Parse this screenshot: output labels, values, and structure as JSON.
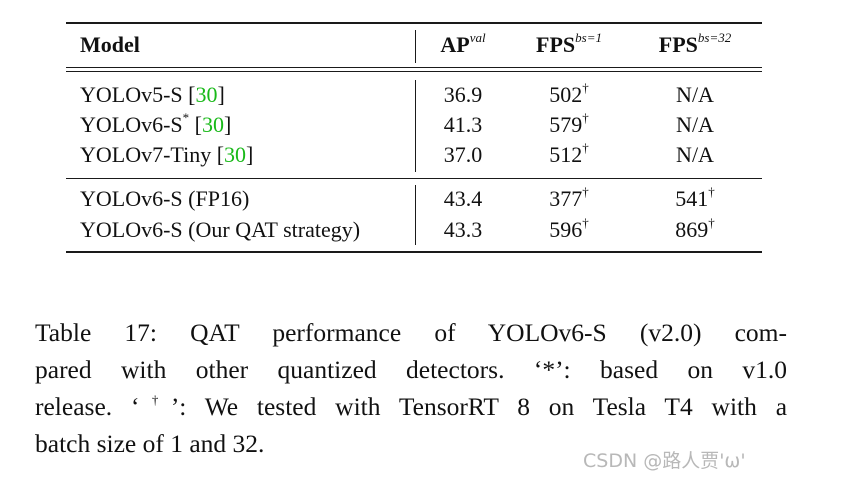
{
  "table": {
    "headers": {
      "model": "Model",
      "ap": "AP",
      "ap_sup": "val",
      "fps1": "FPS",
      "fps1_sup": "bs=1",
      "fps32": "FPS",
      "fps32_sup": "bs=32"
    },
    "rows": [
      {
        "model": "YOLOv5-S",
        "model_sup": "",
        "ref": "30",
        "ap": "36.9",
        "fps1": "502",
        "fps1_mark": "†",
        "fps32": "N/A",
        "fps32_mark": ""
      },
      {
        "model": "YOLOv6-S",
        "model_sup": "*",
        "ref": "30",
        "ap": "41.3",
        "fps1": "579",
        "fps1_mark": "†",
        "fps32": "N/A",
        "fps32_mark": ""
      },
      {
        "model": "YOLOv7-Tiny",
        "model_sup": "",
        "ref": "30",
        "ap": "37.0",
        "fps1": "512",
        "fps1_mark": "†",
        "fps32": "N/A",
        "fps32_mark": ""
      },
      {
        "model": "YOLOv6-S (FP16)",
        "model_sup": "",
        "ref": "",
        "ap": "43.4",
        "fps1": "377",
        "fps1_mark": "†",
        "fps32": "541",
        "fps32_mark": "†"
      },
      {
        "model": "YOLOv6-S (Our QAT strategy)",
        "model_sup": "",
        "ref": "",
        "ap": "43.3",
        "fps1": "596",
        "fps1_mark": "†",
        "fps32": "869",
        "fps32_mark": "†"
      }
    ]
  },
  "caption": {
    "line1": "Table 17: QAT performance of YOLOv6-S (v2.0) com-",
    "line2": "pared with other quantized detectors. ‘*’: based on v1.0",
    "line3a": "release. ‘",
    "line3_sup": "†",
    "line3b": "’: We tested with TensorRT 8 on Tesla T4 with a",
    "line4": "batch size of 1 and 32."
  },
  "watermark": "CSDN @路人贾'ω'"
}
